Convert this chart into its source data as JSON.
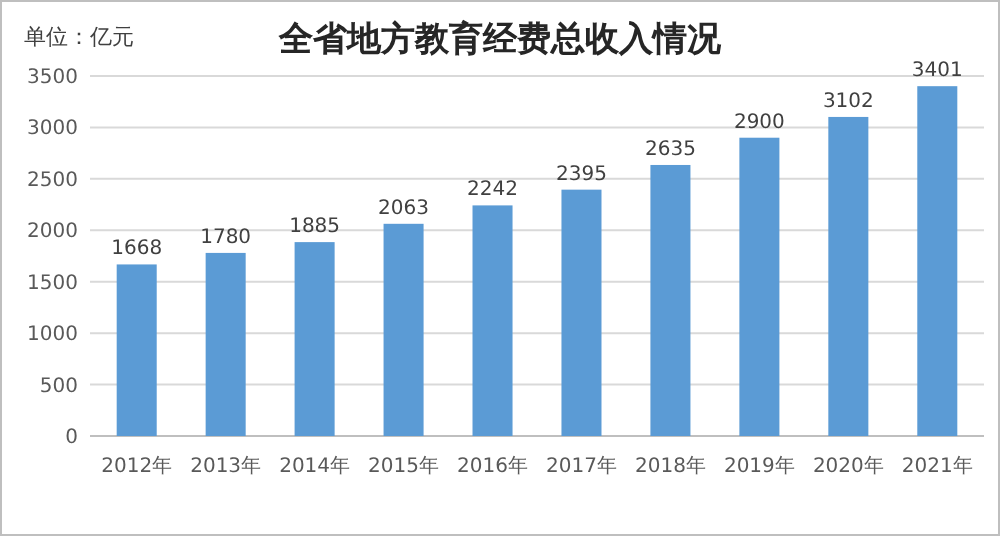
{
  "chart_data": {
    "type": "bar",
    "title": "全省地方教育经费总收入情况",
    "annotations": [
      "单位：亿元"
    ],
    "categories": [
      "2012年",
      "2013年",
      "2014年",
      "2015年",
      "2016年",
      "2017年",
      "2018年",
      "2019年",
      "2020年",
      "2021年"
    ],
    "values": [
      1668,
      1780,
      1885,
      2063,
      2242,
      2395,
      2635,
      2900,
      3102,
      3401
    ],
    "color": "#5b9bd5",
    "ylim": [
      0,
      3500
    ],
    "yticks": [
      0,
      500,
      1000,
      1500,
      2000,
      2500,
      3000,
      3500
    ],
    "grid": "y",
    "data_labels": true
  }
}
